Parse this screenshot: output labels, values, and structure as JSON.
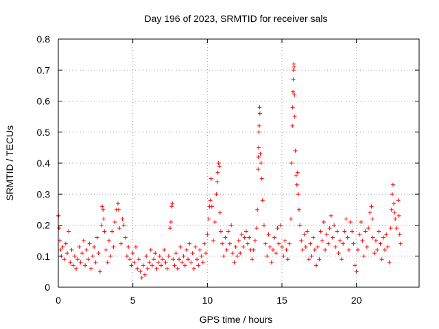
{
  "chart_data": {
    "type": "scatter",
    "title": "Day 196 of 2023, SRMTID for receiver sals",
    "xlabel": "GPS time / hours",
    "ylabel": "SRMTID / TECUs",
    "xlim": [
      0,
      24.2
    ],
    "ylim": [
      0,
      0.8
    ],
    "x_ticks": [
      0,
      5,
      10,
      15,
      20
    ],
    "y_ticks": [
      0,
      0.1,
      0.2,
      0.3,
      0.4,
      0.5,
      0.6,
      0.7,
      0.8
    ],
    "x_tick_labels": [
      "0",
      "5",
      "10",
      "15",
      "20"
    ],
    "y_tick_labels": [
      "0",
      "0.1",
      "0.2",
      "0.3",
      "0.4",
      "0.5",
      "0.6",
      "0.7",
      "0.8"
    ],
    "grid": true,
    "marker": "+",
    "series": [
      {
        "name": "SRMTID",
        "color": "#ff0000",
        "points": [
          [
            0.0,
            0.23
          ],
          [
            0.02,
            0.23
          ],
          [
            0.05,
            0.19
          ],
          [
            0.1,
            0.15
          ],
          [
            0.15,
            0.12
          ],
          [
            0.2,
            0.1
          ],
          [
            0.3,
            0.13
          ],
          [
            0.4,
            0.09
          ],
          [
            0.5,
            0.14
          ],
          [
            0.6,
            0.11
          ],
          [
            0.7,
            0.18
          ],
          [
            0.8,
            0.08
          ],
          [
            0.9,
            0.12
          ],
          [
            1.0,
            0.07
          ],
          [
            1.1,
            0.1
          ],
          [
            1.2,
            0.06
          ],
          [
            1.3,
            0.09
          ],
          [
            1.4,
            0.13
          ],
          [
            1.5,
            0.08
          ],
          [
            1.6,
            0.11
          ],
          [
            1.7,
            0.15
          ],
          [
            1.8,
            0.07
          ],
          [
            1.9,
            0.12
          ],
          [
            2.0,
            0.09
          ],
          [
            2.1,
            0.14
          ],
          [
            2.2,
            0.06
          ],
          [
            2.3,
            0.1
          ],
          [
            2.4,
            0.13
          ],
          [
            2.5,
            0.08
          ],
          [
            2.6,
            0.16
          ],
          [
            2.7,
            0.11
          ],
          [
            2.8,
            0.05
          ],
          [
            2.9,
            0.2
          ],
          [
            2.95,
            0.26
          ],
          [
            3.0,
            0.25
          ],
          [
            3.05,
            0.22
          ],
          [
            3.1,
            0.18
          ],
          [
            3.2,
            0.12
          ],
          [
            3.3,
            0.08
          ],
          [
            3.4,
            0.15
          ],
          [
            3.5,
            0.1
          ],
          [
            3.6,
            0.18
          ],
          [
            3.7,
            0.13
          ],
          [
            3.8,
            0.21
          ],
          [
            3.9,
            0.25
          ],
          [
            4.0,
            0.27
          ],
          [
            4.05,
            0.25
          ],
          [
            4.1,
            0.19
          ],
          [
            4.2,
            0.14
          ],
          [
            4.3,
            0.22
          ],
          [
            4.4,
            0.2
          ],
          [
            4.5,
            0.16
          ],
          [
            4.6,
            0.1
          ],
          [
            4.7,
            0.13
          ],
          [
            4.8,
            0.09
          ],
          [
            4.9,
            0.07
          ],
          [
            5.0,
            0.11
          ],
          [
            5.1,
            0.08
          ],
          [
            5.2,
            0.13
          ],
          [
            5.3,
            0.06
          ],
          [
            5.4,
            0.09
          ],
          [
            5.5,
            0.05
          ],
          [
            5.6,
            0.03
          ],
          [
            5.7,
            0.07
          ],
          [
            5.8,
            0.04
          ],
          [
            5.9,
            0.1
          ],
          [
            6.0,
            0.06
          ],
          [
            6.1,
            0.08
          ],
          [
            6.2,
            0.12
          ],
          [
            6.3,
            0.07
          ],
          [
            6.4,
            0.09
          ],
          [
            6.5,
            0.11
          ],
          [
            6.6,
            0.06
          ],
          [
            6.7,
            0.08
          ],
          [
            6.8,
            0.1
          ],
          [
            6.9,
            0.07
          ],
          [
            7.0,
            0.09
          ],
          [
            7.1,
            0.12
          ],
          [
            7.2,
            0.08
          ],
          [
            7.3,
            0.06
          ],
          [
            7.4,
            0.1
          ],
          [
            7.5,
            0.19
          ],
          [
            7.55,
            0.21
          ],
          [
            7.6,
            0.26
          ],
          [
            7.65,
            0.27
          ],
          [
            7.7,
            0.09
          ],
          [
            7.8,
            0.07
          ],
          [
            7.9,
            0.11
          ],
          [
            8.0,
            0.06
          ],
          [
            8.1,
            0.09
          ],
          [
            8.2,
            0.13
          ],
          [
            8.3,
            0.08
          ],
          [
            8.4,
            0.1
          ],
          [
            8.5,
            0.07
          ],
          [
            8.6,
            0.12
          ],
          [
            8.7,
            0.09
          ],
          [
            8.8,
            0.14
          ],
          [
            8.9,
            0.08
          ],
          [
            9.0,
            0.11
          ],
          [
            9.1,
            0.06
          ],
          [
            9.2,
            0.13
          ],
          [
            9.3,
            0.09
          ],
          [
            9.4,
            0.07
          ],
          [
            9.5,
            0.12
          ],
          [
            9.6,
            0.1
          ],
          [
            9.7,
            0.08
          ],
          [
            9.8,
            0.14
          ],
          [
            9.9,
            0.11
          ],
          [
            10.0,
            0.17
          ],
          [
            10.1,
            0.22
          ],
          [
            10.15,
            0.26
          ],
          [
            10.2,
            0.28
          ],
          [
            10.25,
            0.35
          ],
          [
            10.3,
            0.26
          ],
          [
            10.4,
            0.15
          ],
          [
            10.5,
            0.21
          ],
          [
            10.6,
            0.3
          ],
          [
            10.65,
            0.34
          ],
          [
            10.7,
            0.37
          ],
          [
            10.75,
            0.4
          ],
          [
            10.8,
            0.39
          ],
          [
            10.85,
            0.24
          ],
          [
            10.9,
            0.18
          ],
          [
            11.0,
            0.14
          ],
          [
            11.1,
            0.1
          ],
          [
            11.2,
            0.16
          ],
          [
            11.3,
            0.12
          ],
          [
            11.4,
            0.18
          ],
          [
            11.5,
            0.14
          ],
          [
            11.6,
            0.2
          ],
          [
            11.7,
            0.11
          ],
          [
            11.8,
            0.08
          ],
          [
            11.9,
            0.13
          ],
          [
            12.0,
            0.1
          ],
          [
            12.1,
            0.15
          ],
          [
            12.2,
            0.11
          ],
          [
            12.3,
            0.17
          ],
          [
            12.4,
            0.13
          ],
          [
            12.5,
            0.16
          ],
          [
            12.6,
            0.18
          ],
          [
            12.7,
            0.14
          ],
          [
            12.8,
            0.16
          ],
          [
            12.9,
            0.12
          ],
          [
            13.0,
            0.09
          ],
          [
            13.1,
            0.12
          ],
          [
            13.2,
            0.15
          ],
          [
            13.3,
            0.19
          ],
          [
            13.35,
            0.25
          ],
          [
            13.4,
            0.38
          ],
          [
            13.42,
            0.42
          ],
          [
            13.44,
            0.45
          ],
          [
            13.46,
            0.5
          ],
          [
            13.48,
            0.52
          ],
          [
            13.5,
            0.58
          ],
          [
            13.52,
            0.56
          ],
          [
            13.55,
            0.43
          ],
          [
            13.6,
            0.4
          ],
          [
            13.65,
            0.35
          ],
          [
            13.7,
            0.28
          ],
          [
            13.8,
            0.2
          ],
          [
            13.9,
            0.14
          ],
          [
            14.0,
            0.1
          ],
          [
            14.1,
            0.17
          ],
          [
            14.2,
            0.13
          ],
          [
            14.3,
            0.08
          ],
          [
            14.4,
            0.12
          ],
          [
            14.5,
            0.16
          ],
          [
            14.6,
            0.11
          ],
          [
            14.7,
            0.19
          ],
          [
            14.8,
            0.14
          ],
          [
            14.9,
            0.2
          ],
          [
            15.0,
            0.13
          ],
          [
            15.1,
            0.1
          ],
          [
            15.2,
            0.15
          ],
          [
            15.3,
            0.12
          ],
          [
            15.4,
            0.09
          ],
          [
            15.5,
            0.14
          ],
          [
            15.6,
            0.22
          ],
          [
            15.65,
            0.4
          ],
          [
            15.7,
            0.52
          ],
          [
            15.72,
            0.58
          ],
          [
            15.74,
            0.63
          ],
          [
            15.76,
            0.67
          ],
          [
            15.78,
            0.7
          ],
          [
            15.8,
            0.72
          ],
          [
            15.82,
            0.71
          ],
          [
            15.84,
            0.62
          ],
          [
            15.86,
            0.55
          ],
          [
            15.9,
            0.44
          ],
          [
            15.95,
            0.36
          ],
          [
            16.0,
            0.33
          ],
          [
            16.05,
            0.37
          ],
          [
            16.1,
            0.3
          ],
          [
            16.15,
            0.25
          ],
          [
            16.2,
            0.2
          ],
          [
            16.3,
            0.15
          ],
          [
            16.4,
            0.12
          ],
          [
            16.5,
            0.17
          ],
          [
            16.6,
            0.13
          ],
          [
            16.7,
            0.18
          ],
          [
            16.8,
            0.09
          ],
          [
            16.9,
            0.14
          ],
          [
            17.0,
            0.1
          ],
          [
            17.1,
            0.16
          ],
          [
            17.2,
            0.12
          ],
          [
            17.3,
            0.07
          ],
          [
            17.4,
            0.13
          ],
          [
            17.5,
            0.09
          ],
          [
            17.6,
            0.18
          ],
          [
            17.7,
            0.15
          ],
          [
            17.8,
            0.21
          ],
          [
            17.9,
            0.12
          ],
          [
            18.0,
            0.17
          ],
          [
            18.1,
            0.14
          ],
          [
            18.2,
            0.19
          ],
          [
            18.3,
            0.23
          ],
          [
            18.4,
            0.16
          ],
          [
            18.5,
            0.2
          ],
          [
            18.6,
            0.13
          ],
          [
            18.7,
            0.18
          ],
          [
            18.8,
            0.11
          ],
          [
            18.9,
            0.15
          ],
          [
            19.0,
            0.09
          ],
          [
            19.1,
            0.14
          ],
          [
            19.2,
            0.18
          ],
          [
            19.3,
            0.22
          ],
          [
            19.4,
            0.16
          ],
          [
            19.5,
            0.12
          ],
          [
            19.6,
            0.21
          ],
          [
            19.7,
            0.18
          ],
          [
            19.8,
            0.14
          ],
          [
            19.9,
            0.07
          ],
          [
            20.0,
            0.05
          ],
          [
            20.1,
            0.12
          ],
          [
            20.2,
            0.17
          ],
          [
            20.3,
            0.21
          ],
          [
            20.4,
            0.15
          ],
          [
            20.5,
            0.1
          ],
          [
            20.6,
            0.18
          ],
          [
            20.7,
            0.13
          ],
          [
            20.8,
            0.19
          ],
          [
            20.9,
            0.24
          ],
          [
            21.0,
            0.26
          ],
          [
            21.05,
            0.22
          ],
          [
            21.1,
            0.16
          ],
          [
            21.2,
            0.11
          ],
          [
            21.3,
            0.15
          ],
          [
            21.4,
            0.12
          ],
          [
            21.5,
            0.18
          ],
          [
            21.6,
            0.14
          ],
          [
            21.7,
            0.09
          ],
          [
            21.8,
            0.16
          ],
          [
            21.9,
            0.12
          ],
          [
            22.0,
            0.17
          ],
          [
            22.1,
            0.13
          ],
          [
            22.2,
            0.08
          ],
          [
            22.3,
            0.19
          ],
          [
            22.35,
            0.25
          ],
          [
            22.4,
            0.3
          ],
          [
            22.45,
            0.33
          ],
          [
            22.5,
            0.27
          ],
          [
            22.55,
            0.24
          ],
          [
            22.6,
            0.22
          ],
          [
            22.7,
            0.19
          ],
          [
            22.8,
            0.28
          ],
          [
            22.85,
            0.23
          ],
          [
            22.9,
            0.17
          ],
          [
            22.95,
            0.14
          ]
        ]
      }
    ]
  }
}
